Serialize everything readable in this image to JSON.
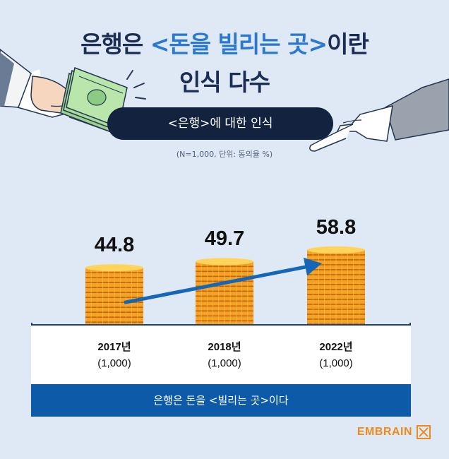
{
  "title": {
    "line1_prefix": "은행은 ",
    "line1_highlight": "<돈을 빌리는 곳>",
    "line1_suffix": "이란",
    "line2": "인식 다수"
  },
  "subtitle": "<은행>에 대한 인식",
  "note": "(N=1,000, 단위: 동의율 %)",
  "brand": "EMBRAIN",
  "chart_data": {
    "type": "bar",
    "categories": [
      "2017년",
      "2018년",
      "2022년"
    ],
    "category_sublabels": [
      "(1,000)",
      "(1,000)",
      "(1,000)"
    ],
    "series": [
      {
        "name": "은행은 돈을 <빌리는 곳>이다",
        "values": [
          44.8,
          49.7,
          58.8
        ]
      }
    ],
    "value_labels": [
      "44.8",
      "49.7",
      "58.8"
    ],
    "trend_arrow": true,
    "bar_style": "stacked gold coins",
    "colors": {
      "coin": "#f3a323",
      "coin_shadow": "#c8620e",
      "arrow": "#1466b8",
      "legend_band": "#0d5aa8",
      "title": "#1b2c55",
      "title_accent": "#2a78d0"
    }
  }
}
